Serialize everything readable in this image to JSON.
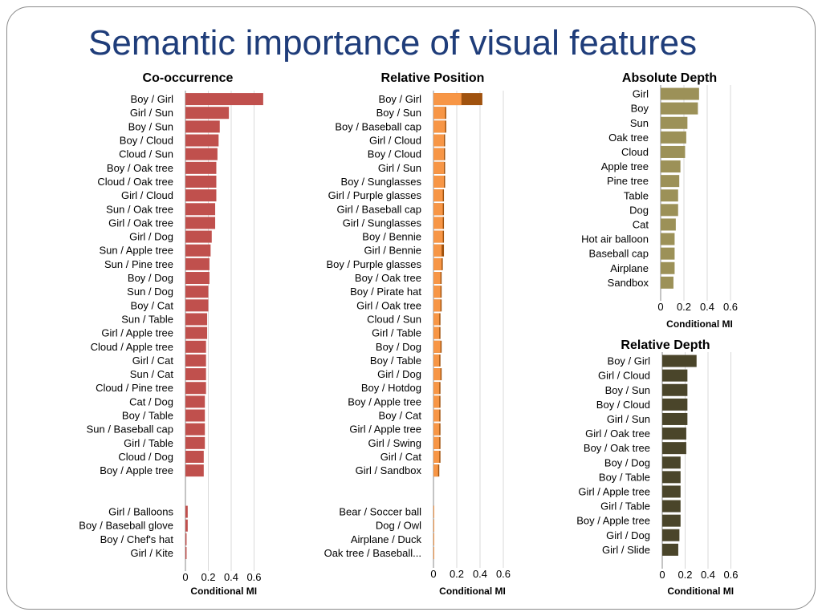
{
  "slide": {
    "title": "Semantic importance of visual features"
  },
  "chart_data": [
    {
      "id": "cooc",
      "type": "bar",
      "orientation": "horizontal",
      "title": "Co-occurrence",
      "xlabel": "Conditional MI",
      "xlim": [
        0,
        0.7
      ],
      "xticks": [
        "0",
        "0.2",
        "0.4",
        "0.6"
      ],
      "grid": true,
      "color": "#c0504d",
      "categories": [
        "Boy / Girl",
        "Girl / Sun",
        "Boy / Sun",
        "Boy / Cloud",
        "Cloud / Sun",
        "Boy / Oak tree",
        "Cloud / Oak tree",
        "Girl / Cloud",
        "Sun / Oak tree",
        "Girl / Oak tree",
        "Girl / Dog",
        "Sun / Apple tree",
        "Sun / Pine tree",
        "Boy / Dog",
        "Sun / Dog",
        "Boy / Cat",
        "Sun / Table",
        "Girl / Apple tree",
        "Cloud / Apple tree",
        "Girl / Cat",
        "Sun / Cat",
        "Cloud / Pine tree",
        "Cat / Dog",
        "Boy / Table",
        "Sun / Baseball cap",
        "Girl / Table",
        "Cloud / Dog",
        "Boy / Apple tree",
        "",
        "",
        "Girl / Balloons",
        "Boy / Baseball glove",
        "Boy / Chef's hat",
        "Girl / Kite"
      ],
      "values": [
        0.68,
        0.38,
        0.3,
        0.29,
        0.28,
        0.27,
        0.27,
        0.27,
        0.26,
        0.26,
        0.23,
        0.22,
        0.21,
        0.21,
        0.2,
        0.2,
        0.19,
        0.19,
        0.18,
        0.18,
        0.18,
        0.18,
        0.17,
        0.17,
        0.17,
        0.17,
        0.16,
        0.16,
        null,
        null,
        0.02,
        0.02,
        0.01,
        0.01
      ]
    },
    {
      "id": "relpos",
      "type": "bar",
      "orientation": "horizontal",
      "title": "Relative Position",
      "xlabel": "Conditional MI",
      "xlim": [
        0,
        0.6
      ],
      "xticks": [
        "0",
        "0.2",
        "0.4",
        "0.6"
      ],
      "grid": true,
      "color": "#e46c0a",
      "series": [
        {
          "color": "#a0520e",
          "values": [
            0.42,
            0.11,
            0.11,
            0.1,
            0.1,
            0.1,
            0.1,
            0.09,
            0.09,
            0.09,
            0.09,
            0.09,
            0.08,
            0.07,
            0.07,
            0.07,
            0.06,
            0.06,
            0.07,
            0.06,
            0.07,
            0.06,
            0.06,
            0.06,
            0.06,
            0.06,
            0.06,
            0.05,
            null,
            null,
            0.004,
            0.004,
            0.004,
            0.004
          ]
        },
        {
          "color": "#f79646",
          "values": [
            0.24,
            0.1,
            0.1,
            0.09,
            0.09,
            0.09,
            0.09,
            0.08,
            0.08,
            0.08,
            0.08,
            0.07,
            0.07,
            0.06,
            0.06,
            0.06,
            0.05,
            0.05,
            0.06,
            0.05,
            0.06,
            0.05,
            0.05,
            0.05,
            0.05,
            0.05,
            0.05,
            0.04,
            null,
            null,
            0.004,
            0.004,
            0.004,
            0.004
          ]
        }
      ],
      "categories": [
        "Boy / Girl",
        "Boy / Sun",
        "Boy / Baseball cap",
        "Girl / Cloud",
        "Boy / Cloud",
        "Girl / Sun",
        "Boy / Sunglasses",
        "Girl / Purple glasses",
        "Girl / Baseball cap",
        "Girl / Sunglasses",
        "Boy / Bennie",
        "Girl / Bennie",
        "Boy / Purple glasses",
        "Boy / Oak tree",
        "Boy / Pirate hat",
        "Girl / Oak tree",
        "Cloud / Sun",
        "Girl / Table",
        "Boy / Dog",
        "Boy / Table",
        "Girl / Dog",
        "Boy / Hotdog",
        "Boy / Apple tree",
        "Boy / Cat",
        "Girl / Apple tree",
        "Girl / Swing",
        "Girl / Cat",
        "Girl / Sandbox",
        "",
        "",
        "Bear / Soccer ball",
        "Dog / Owl",
        "Airplane / Duck",
        "Oak tree / Baseball..."
      ]
    },
    {
      "id": "absdepth",
      "type": "bar",
      "orientation": "horizontal",
      "title": "Absolute Depth",
      "xlabel": "Conditional MI",
      "xlim": [
        0,
        0.7
      ],
      "xticks": [
        "0",
        "0.2",
        "0.4",
        "0.6"
      ],
      "grid": true,
      "color": "#9c9158",
      "categories": [
        "Girl",
        "Boy",
        "Sun",
        "Oak tree",
        "Cloud",
        "Apple tree",
        "Pine tree",
        "Table",
        "Dog",
        "Cat",
        "Hot air balloon",
        "Baseball cap",
        "Airplane",
        "Sandbox"
      ],
      "values": [
        0.33,
        0.32,
        0.23,
        0.22,
        0.21,
        0.17,
        0.16,
        0.15,
        0.15,
        0.13,
        0.12,
        0.12,
        0.12,
        0.11
      ]
    },
    {
      "id": "reldepth",
      "type": "bar",
      "orientation": "horizontal",
      "title": "Relative Depth",
      "xlabel": "Conditional MI",
      "xlim": [
        0,
        0.7
      ],
      "xticks": [
        "0",
        "0.2",
        "0.4",
        "0.6"
      ],
      "grid": true,
      "color": "#4a452a",
      "categories": [
        "Boy / Girl",
        "Girl / Cloud",
        "Boy / Sun",
        "Boy / Cloud",
        "Girl / Sun",
        "Girl / Oak tree",
        "Boy / Oak tree",
        "Boy / Dog",
        "Boy / Table",
        "Girl / Apple tree",
        "Girl / Table",
        "Boy / Apple tree",
        "Girl / Dog",
        "Girl / Slide"
      ],
      "values": [
        0.3,
        0.22,
        0.22,
        0.22,
        0.22,
        0.21,
        0.21,
        0.16,
        0.16,
        0.16,
        0.16,
        0.16,
        0.15,
        0.14
      ]
    }
  ]
}
